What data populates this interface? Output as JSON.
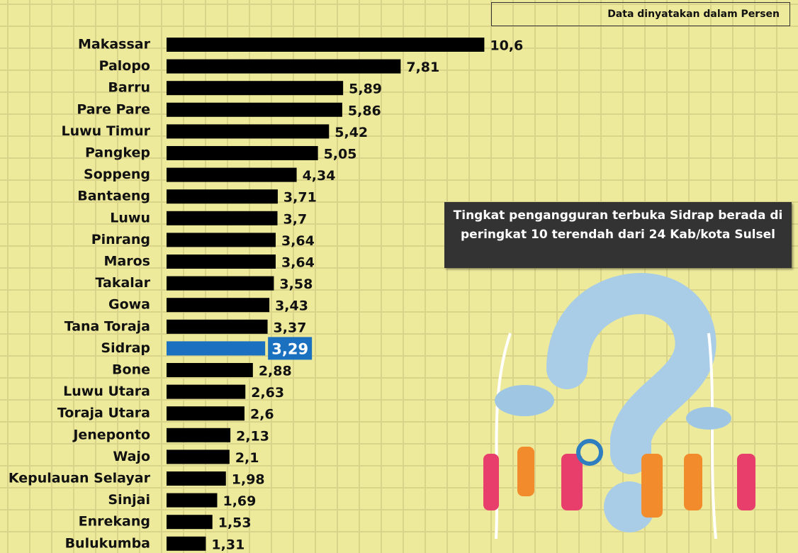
{
  "chart_data": {
    "type": "bar",
    "orientation": "horizontal",
    "unit_note": "Data dinyatakan dalam Persen",
    "annotation": "Tingkat pengangguran terbuka Sidrap berada di peringkat 10 terendah dari 24 Kab/kota Sulsel",
    "categories": [
      "Makassar",
      "Palopo",
      "Barru",
      "Pare Pare",
      "Luwu Timur",
      "Pangkep",
      "Soppeng",
      "Bantaeng",
      "Luwu",
      "Pinrang",
      "Maros",
      "Takalar",
      "Gowa",
      "Tana Toraja",
      "Sidrap",
      "Bone",
      "Luwu Utara",
      "Toraja Utara",
      "Jeneponto",
      "Wajo",
      "Kepulauan Selayar",
      "Sinjai",
      "Enrekang",
      "Bulukumba"
    ],
    "values": [
      10.6,
      7.81,
      5.89,
      5.86,
      5.42,
      5.05,
      4.34,
      3.71,
      3.7,
      3.64,
      3.64,
      3.58,
      3.43,
      3.37,
      3.29,
      2.88,
      2.63,
      2.6,
      2.13,
      2.1,
      1.98,
      1.69,
      1.53,
      1.31
    ],
    "value_labels": [
      "10,6",
      "7,81",
      "5,89",
      "5,86",
      "5,42",
      "5,05",
      "4,34",
      "3,71",
      "3,7",
      "3,64",
      "3,64",
      "3,58",
      "3,43",
      "3,37",
      "3,29",
      "2,88",
      "2,63",
      "2,6",
      "2,13",
      "2,1",
      "1,98",
      "1,69",
      "1,53",
      "1,31"
    ],
    "colors": [
      "#000000",
      "#000000",
      "#000000",
      "#000000",
      "#000000",
      "#000000",
      "#000000",
      "#000000",
      "#000000",
      "#000000",
      "#000000",
      "#000000",
      "#000000",
      "#000000",
      "#1b70c0",
      "#000000",
      "#000000",
      "#000000",
      "#000000",
      "#000000",
      "#000000",
      "#000000",
      "#000000",
      "#000000"
    ]
  }
}
